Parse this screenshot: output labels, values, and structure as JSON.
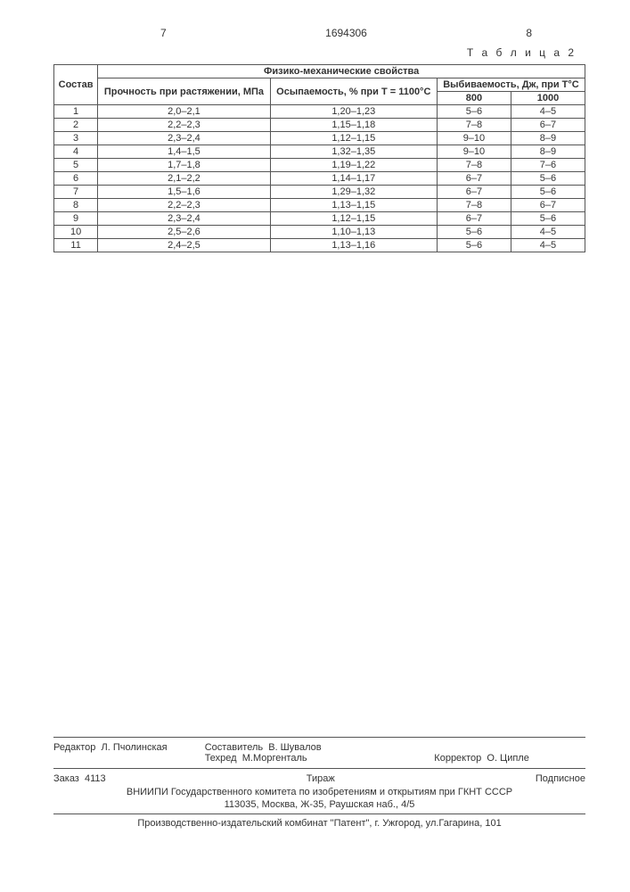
{
  "header": {
    "left_num": "7",
    "doc_num": "1694306",
    "right_num": "8"
  },
  "table": {
    "label": "Т а б л и ц а  2",
    "col_sostav": "Состав",
    "col_group": "Физико-механические свойства",
    "col_strength": "Прочность при растяжении, МПа",
    "col_crumble": "Осыпаемость, % при T = 1100°C",
    "col_knockout": "Выбиваемость, Дж, при T°C",
    "col_800": "800",
    "col_1000": "1000",
    "rows": [
      {
        "n": "1",
        "s": "2,0–2,1",
        "o": "1,20–1,23",
        "v8": "5–6",
        "v10": "4–5"
      },
      {
        "n": "2",
        "s": "2,2–2,3",
        "o": "1,15–1,18",
        "v8": "7–8",
        "v10": "6–7"
      },
      {
        "n": "3",
        "s": "2,3–2,4",
        "o": "1,12–1,15",
        "v8": "9–10",
        "v10": "8–9"
      },
      {
        "n": "4",
        "s": "1,4–1,5",
        "o": "1,32–1,35",
        "v8": "9–10",
        "v10": "8–9"
      },
      {
        "n": "5",
        "s": "1,7–1,8",
        "o": "1,19–1,22",
        "v8": "7–8",
        "v10": "7–6"
      },
      {
        "n": "6",
        "s": "2,1–2,2",
        "o": "1,14–1,17",
        "v8": "6–7",
        "v10": "5–6"
      },
      {
        "n": "7",
        "s": "1,5–1,6",
        "o": "1,29–1,32",
        "v8": "6–7",
        "v10": "5–6"
      },
      {
        "n": "8",
        "s": "2,2–2,3",
        "o": "1,13–1,15",
        "v8": "7–8",
        "v10": "6–7"
      },
      {
        "n": "9",
        "s": "2,3–2,4",
        "o": "1,12–1,15",
        "v8": "6–7",
        "v10": "5–6"
      },
      {
        "n": "10",
        "s": "2,5–2,6",
        "o": "1,10–1,13",
        "v8": "5–6",
        "v10": "4–5"
      },
      {
        "n": "11",
        "s": "2,4–2,5",
        "o": "1,13–1,16",
        "v8": "5–6",
        "v10": "4–5"
      }
    ]
  },
  "footer": {
    "editor_label": "Редактор",
    "editor_name": "Л. Пчолинская",
    "compiler_label": "Составитель",
    "compiler_name": "В. Шувалов",
    "techred_label": "Техред",
    "techred_name": "М.Моргенталь",
    "corrector_label": "Корректор",
    "corrector_name": "О. Ципле",
    "order_label": "Заказ",
    "order_num": "4113",
    "tirazh": "Тираж",
    "subscr": "Подписное",
    "org_line": "ВНИИПИ Государственного комитета по изобретениям и открытиям при ГКНТ СССР",
    "addr_line": "113035, Москва, Ж-35, Раушская наб., 4/5",
    "prod_line": "Производственно-издательский комбинат \"Патент\", г. Ужгород, ул.Гагарина, 101"
  }
}
